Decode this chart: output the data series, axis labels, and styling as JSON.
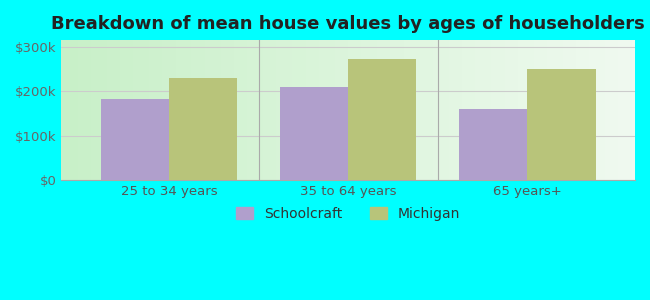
{
  "title": "Breakdown of mean house values by ages of householders",
  "categories": [
    "25 to 34 years",
    "35 to 64 years",
    "65 years+"
  ],
  "schoolcraft_values": [
    182000,
    210000,
    160000
  ],
  "michigan_values": [
    230000,
    272000,
    250000
  ],
  "schoolcraft_color": "#b09fcc",
  "michigan_color": "#b8c47a",
  "ylim": [
    0,
    315000
  ],
  "yticks": [
    0,
    100000,
    200000,
    300000
  ],
  "ytick_labels": [
    "$0",
    "$100k",
    "$200k",
    "$300k"
  ],
  "outer_bg_color": "#00ffff",
  "plot_bg_color_left": "#c8f0c8",
  "plot_bg_color_right": "#f0faf0",
  "bar_width": 0.38,
  "legend_labels": [
    "Schoolcraft",
    "Michigan"
  ],
  "title_fontsize": 13,
  "tick_fontsize": 9.5,
  "legend_fontsize": 10
}
